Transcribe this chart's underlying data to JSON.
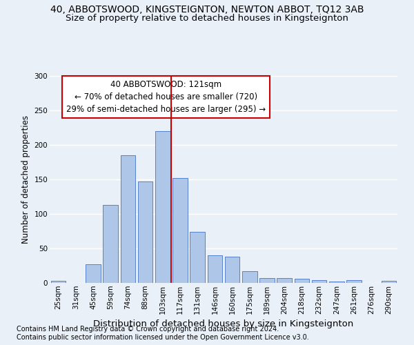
{
  "title": "40, ABBOTSWOOD, KINGSTEIGNTON, NEWTON ABBOT, TQ12 3AB",
  "subtitle": "Size of property relative to detached houses in Kingsteignton",
  "xlabel": "Distribution of detached houses by size in Kingsteignton",
  "ylabel": "Number of detached properties",
  "footnote1": "Contains HM Land Registry data © Crown copyright and database right 2024.",
  "footnote2": "Contains public sector information licensed under the Open Government Licence v3.0.",
  "bar_labels": [
    "25sqm",
    "31sqm",
    "45sqm",
    "59sqm",
    "74sqm",
    "88sqm",
    "103sqm",
    "117sqm",
    "131sqm",
    "146sqm",
    "160sqm",
    "175sqm",
    "189sqm",
    "204sqm",
    "218sqm",
    "232sqm",
    "247sqm",
    "261sqm",
    "276sqm",
    "290sqm"
  ],
  "bar_values": [
    3,
    0,
    27,
    113,
    185,
    147,
    220,
    152,
    74,
    40,
    38,
    17,
    7,
    7,
    6,
    4,
    2,
    4,
    0,
    3
  ],
  "bar_color": "#aec6e8",
  "bar_edge_color": "#4472c4",
  "background_color": "#eaf0f8",
  "grid_color": "#ffffff",
  "vline_color": "#cc0000",
  "annotation_line1": "40 ABBOTSWOOD: 121sqm",
  "annotation_line2": "← 70% of detached houses are smaller (720)",
  "annotation_line3": "29% of semi-detached houses are larger (295) →",
  "annotation_box_color": "#ffffff",
  "annotation_border_color": "#cc0000",
  "ylim": [
    0,
    300
  ],
  "yticks": [
    0,
    50,
    100,
    150,
    200,
    250,
    300
  ],
  "title_fontsize": 10,
  "subtitle_fontsize": 9.5,
  "xlabel_fontsize": 9.5,
  "ylabel_fontsize": 8.5,
  "tick_fontsize": 7.5,
  "annotation_fontsize": 8.5,
  "footnote_fontsize": 7
}
